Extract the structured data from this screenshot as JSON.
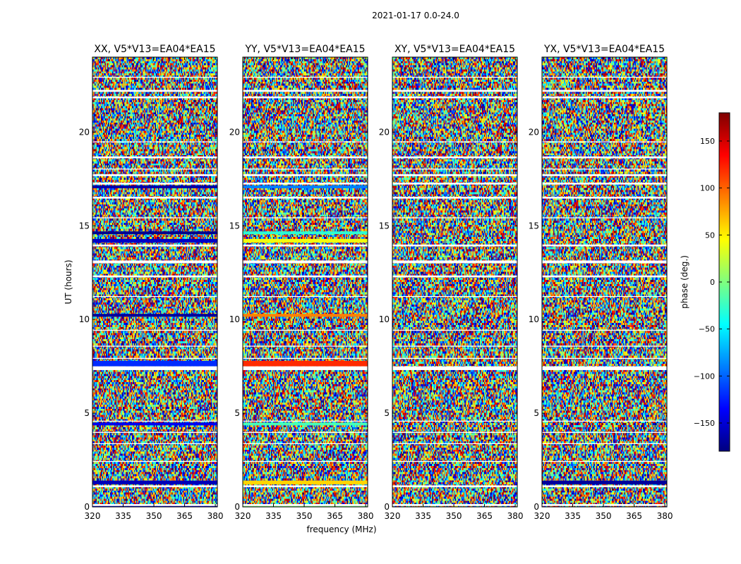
{
  "figure": {
    "suptitle": "2021-01-17 0.0-24.0",
    "xlabel": "frequency (MHz)",
    "ylabel": "UT (hours)"
  },
  "colorbar": {
    "label": "phase (deg.)",
    "min": -180,
    "max": 180,
    "ticks": [
      150,
      100,
      50,
      0,
      -50,
      -100,
      -150
    ],
    "tick_labels": [
      "150",
      "100",
      "50",
      "0",
      "−50",
      "−100",
      "−150"
    ],
    "colormap": "jet",
    "colors": [
      "#00007f",
      "#0000ff",
      "#007fff",
      "#00ffff",
      "#7fff7f",
      "#ffff00",
      "#ff7f00",
      "#ff0000",
      "#7f0000"
    ]
  },
  "chart_data": {
    "type": "heatmap",
    "x_range": [
      320,
      381
    ],
    "y_range": [
      0,
      24
    ],
    "x_ticks": [
      320,
      335,
      350,
      365,
      380
    ],
    "y_ticks": [
      0,
      5,
      10,
      15,
      20
    ],
    "value_label": "phase (deg.)",
    "value_range": [
      -180,
      180
    ],
    "panels": [
      {
        "title": "XX, V5*V13=EA04*EA15",
        "pol": "XX"
      },
      {
        "title": "YY, V5*V13=EA04*EA15",
        "pol": "YY"
      },
      {
        "title": "XY, V5*V13=EA04*EA15",
        "pol": "XY"
      },
      {
        "title": "YX, V5*V13=EA04*EA15",
        "pol": "YX"
      }
    ],
    "flagged_bands_hours": [
      [
        0.05,
        0.15
      ],
      [
        1.05,
        1.15
      ],
      [
        2.4,
        2.45
      ],
      [
        3.35,
        3.4
      ],
      [
        3.95,
        4.0
      ],
      [
        4.55,
        4.6
      ],
      [
        7.3,
        7.5
      ],
      [
        7.9,
        7.95
      ],
      [
        8.55,
        8.6
      ],
      [
        9.4,
        9.45
      ],
      [
        11.2,
        11.25
      ],
      [
        12.25,
        12.35
      ],
      [
        13.0,
        13.15
      ],
      [
        13.9,
        14.0
      ],
      [
        15.4,
        15.45
      ],
      [
        16.45,
        16.55
      ],
      [
        17.2,
        17.3
      ],
      [
        17.65,
        17.75
      ],
      [
        18.0,
        18.05
      ],
      [
        18.6,
        18.7
      ],
      [
        19.45,
        19.5
      ],
      [
        21.8,
        21.9
      ],
      [
        22.15,
        22.25
      ],
      [
        22.9,
        22.95
      ]
    ],
    "coherent_bands_hours": {
      "XX": [
        [
          0.0,
          0.05,
          -150
        ],
        [
          1.2,
          1.4,
          -160
        ],
        [
          4.35,
          4.5,
          -140
        ],
        [
          7.5,
          7.8,
          -120
        ],
        [
          10.15,
          10.3,
          -170
        ],
        [
          14.1,
          14.3,
          -155
        ],
        [
          14.55,
          14.7,
          -175
        ],
        [
          17.0,
          17.15,
          -165
        ]
      ],
      "YY": [
        [
          0.0,
          0.05,
          0
        ],
        [
          1.2,
          1.4,
          60
        ],
        [
          4.35,
          4.5,
          -20
        ],
        [
          7.5,
          7.8,
          120
        ],
        [
          10.15,
          10.3,
          90
        ],
        [
          14.1,
          14.3,
          40
        ],
        [
          14.55,
          14.7,
          -30
        ],
        [
          17.0,
          17.15,
          -90
        ]
      ],
      "XY": [],
      "YX": [
        [
          1.2,
          1.4,
          -170
        ]
      ]
    }
  }
}
